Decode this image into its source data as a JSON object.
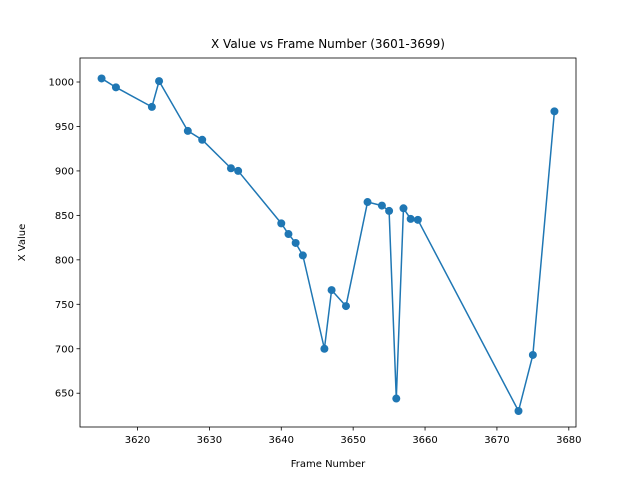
{
  "chart_data": {
    "type": "line",
    "title": "X Value vs Frame Number (3601-3699)",
    "xlabel": "Frame Number",
    "ylabel": "X Value",
    "xlim": [
      3612,
      3681
    ],
    "ylim": [
      612,
      1027
    ],
    "xticks": [
      3620,
      3630,
      3640,
      3650,
      3660,
      3670,
      3680
    ],
    "yticks": [
      650,
      700,
      750,
      800,
      850,
      900,
      950,
      1000
    ],
    "grid": false,
    "marker": "circle",
    "series": [
      {
        "color": "#1f77b4",
        "x": [
          3615,
          3617,
          3622,
          3623,
          3627,
          3629,
          3633,
          3634,
          3640,
          3641,
          3642,
          3643,
          3646,
          3647,
          3649,
          3652,
          3654,
          3655,
          3656,
          3657,
          3658,
          3659,
          3673,
          3675,
          3678
        ],
        "y": [
          1004,
          994,
          972,
          1001,
          945,
          935,
          903,
          900,
          841,
          829,
          819,
          805,
          700,
          766,
          748,
          865,
          861,
          855,
          644,
          858,
          846,
          845,
          630,
          693,
          967
        ]
      }
    ]
  }
}
